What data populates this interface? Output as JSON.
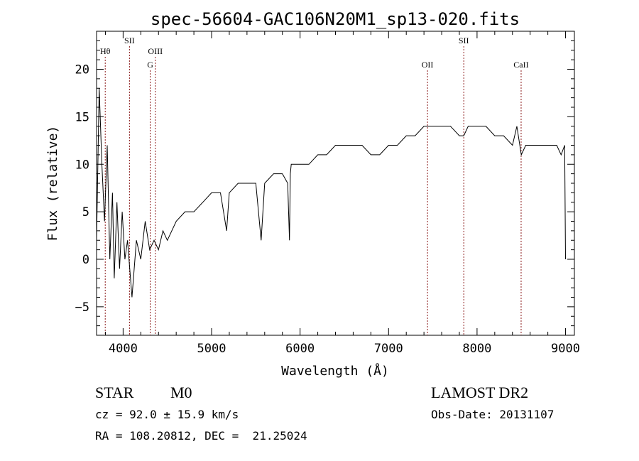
{
  "chart_data": {
    "type": "line",
    "title": "spec-56604-GAC106N20M1_sp13-020.fits",
    "xlabel": "Wavelength (Å)",
    "ylabel": "Flux (relative)",
    "xlim": [
      3700,
      9100
    ],
    "ylim": [
      -8,
      24
    ],
    "xticks": [
      4000,
      5000,
      6000,
      7000,
      8000,
      9000
    ],
    "yticks": [
      -5,
      0,
      5,
      10,
      15,
      20
    ],
    "grid": false,
    "line_color": "#000000",
    "marker_color": "#8b1a1a",
    "series": [
      {
        "x": [
          3700,
          3730,
          3760,
          3790,
          3820,
          3850,
          3880,
          3900,
          3930,
          3960,
          3990,
          4020,
          4050,
          4100,
          4150,
          4200,
          4250,
          4300,
          4350,
          4400,
          4450,
          4500,
          4600,
          4700,
          4800,
          4900,
          5000,
          5100,
          5170,
          5200,
          5300,
          5400,
          5500,
          5560,
          5600,
          5700,
          5800,
          5860,
          5880,
          5890,
          5900,
          5950,
          6000,
          6100,
          6200,
          6300,
          6400,
          6500,
          6600,
          6700,
          6800,
          6900,
          7000,
          7100,
          7200,
          7300,
          7400,
          7450,
          7500,
          7600,
          7700,
          7800,
          7850,
          7900,
          8000,
          8100,
          8200,
          8300,
          8400,
          8450,
          8500,
          8550,
          8600,
          8700,
          8800,
          8900,
          8950,
          8990,
          9000
        ],
        "y": [
          2,
          18,
          10,
          4,
          12,
          0,
          7,
          -2,
          6,
          -1,
          5,
          0,
          2,
          -4,
          2,
          0,
          4,
          1,
          2,
          1,
          3,
          2,
          4,
          5,
          5,
          6,
          7,
          7,
          3,
          7,
          8,
          8,
          8,
          2,
          8,
          9,
          9,
          8,
          2,
          9,
          10,
          10,
          10,
          10,
          11,
          11,
          12,
          12,
          12,
          12,
          11,
          11,
          12,
          12,
          13,
          13,
          14,
          14,
          14,
          14,
          14,
          13,
          13,
          14,
          14,
          14,
          13,
          13,
          12,
          14,
          11,
          12,
          12,
          12,
          12,
          12,
          11,
          12,
          0
        ]
      }
    ],
    "markers": [
      {
        "label": "Hθ",
        "x": 3798,
        "row": 1
      },
      {
        "label": "SII",
        "x": 4072,
        "row": 0
      },
      {
        "label": "OIII",
        "x": 4364,
        "row": 1
      },
      {
        "label": "G",
        "x": 4306,
        "row": 2
      },
      {
        "label": "OII",
        "x": 7440,
        "row": 2
      },
      {
        "label": "SII",
        "x": 7850,
        "row": 0
      },
      {
        "label": "CaII",
        "x": 8498,
        "row": 2
      }
    ]
  },
  "info": {
    "obj_class": "STAR",
    "subclass": "M0",
    "survey": "LAMOST DR2",
    "cz": "cz = 92.0 ± 15.9 km/s",
    "obs_date": "Obs-Date: 20131107",
    "coords": "RA = 108.20812, DEC =  21.25024"
  }
}
